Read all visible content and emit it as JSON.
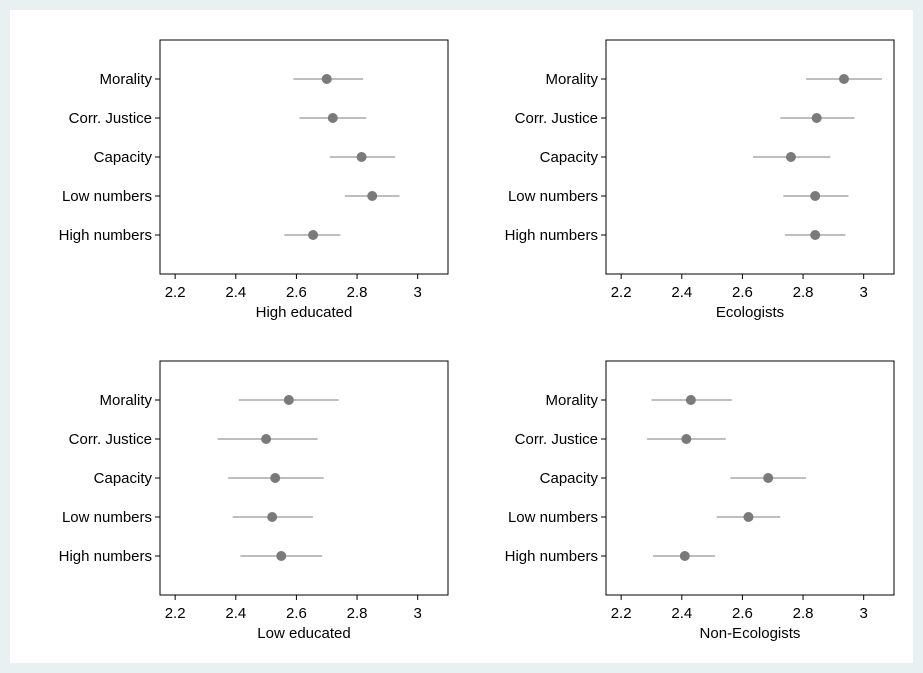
{
  "chart_data": [
    {
      "type": "scatter",
      "xlabel": "High educated",
      "categories": [
        "Morality",
        "Corr. Justice",
        "Capacity",
        "Low numbers",
        "High numbers"
      ],
      "estimates": [
        2.7,
        2.72,
        2.815,
        2.85,
        2.655
      ],
      "ci_low": [
        2.59,
        2.61,
        2.71,
        2.76,
        2.56
      ],
      "ci_high": [
        2.82,
        2.83,
        2.925,
        2.94,
        2.745
      ],
      "xlim": [
        2.15,
        3.1
      ],
      "xticks": [
        "2.2",
        "2.4",
        "2.6",
        "2.8",
        "3"
      ]
    },
    {
      "type": "scatter",
      "xlabel": "Ecologists",
      "categories": [
        "Morality",
        "Corr. Justice",
        "Capacity",
        "Low numbers",
        "High numbers"
      ],
      "estimates": [
        2.935,
        2.845,
        2.76,
        2.84,
        2.84
      ],
      "ci_low": [
        2.81,
        2.725,
        2.635,
        2.735,
        2.74
      ],
      "ci_high": [
        3.06,
        2.97,
        2.89,
        2.95,
        2.94
      ],
      "xlim": [
        2.15,
        3.1
      ],
      "xticks": [
        "2.2",
        "2.4",
        "2.6",
        "2.8",
        "3"
      ]
    },
    {
      "type": "scatter",
      "xlabel": "Low educated",
      "categories": [
        "Morality",
        "Corr. Justice",
        "Capacity",
        "Low numbers",
        "High numbers"
      ],
      "estimates": [
        2.575,
        2.5,
        2.53,
        2.52,
        2.55
      ],
      "ci_low": [
        2.41,
        2.34,
        2.375,
        2.39,
        2.415
      ],
      "ci_high": [
        2.74,
        2.67,
        2.69,
        2.655,
        2.685
      ],
      "xlim": [
        2.15,
        3.1
      ],
      "xticks": [
        "2.2",
        "2.4",
        "2.6",
        "2.8",
        "3"
      ]
    },
    {
      "type": "scatter",
      "xlabel": "Non-Ecologists",
      "categories": [
        "Morality",
        "Corr. Justice",
        "Capacity",
        "Low numbers",
        "High numbers"
      ],
      "estimates": [
        2.43,
        2.415,
        2.685,
        2.62,
        2.41
      ],
      "ci_low": [
        2.3,
        2.285,
        2.56,
        2.515,
        2.305
      ],
      "ci_high": [
        2.565,
        2.545,
        2.81,
        2.725,
        2.51
      ],
      "xlim": [
        2.15,
        3.1
      ],
      "xticks": [
        "2.2",
        "2.4",
        "2.6",
        "2.8",
        "3"
      ]
    }
  ],
  "style": {
    "marker_color": "#7a7a7a",
    "ci_color": "#a8a8a8",
    "axis_color": "#000000",
    "frame_background": "#e8f0f2"
  }
}
